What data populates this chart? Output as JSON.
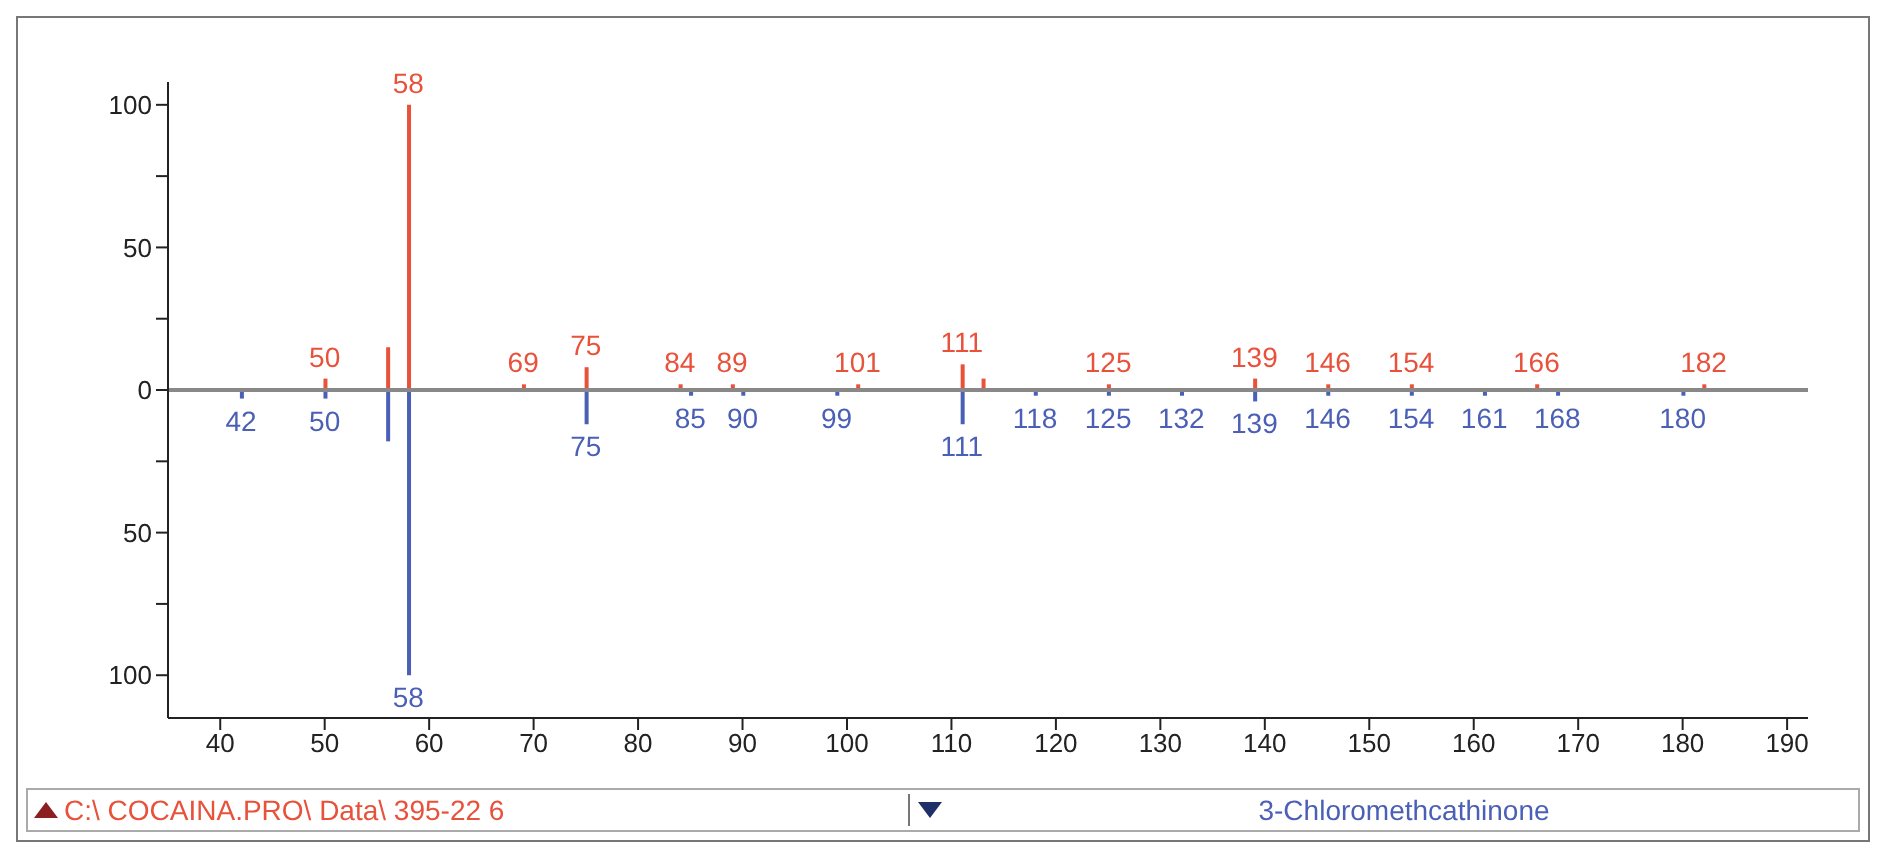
{
  "chart_data": {
    "type": "bar",
    "xlim": [
      35,
      192
    ],
    "xticks": [
      40,
      50,
      60,
      70,
      80,
      90,
      100,
      110,
      120,
      130,
      140,
      150,
      160,
      170,
      180,
      190
    ],
    "ylim": [
      -115,
      108
    ],
    "yticks": [
      100,
      {
        "value": 75,
        "label": null
      },
      50,
      {
        "value": 25,
        "label": null
      },
      0,
      {
        "value": -25,
        "label": null
      },
      {
        "value": -50,
        "label": "50"
      },
      {
        "value": -75,
        "label": null
      },
      {
        "value": -100,
        "label": "100"
      }
    ],
    "series": [
      {
        "color": "#e8513a",
        "x": [
          50,
          56,
          58,
          69,
          75,
          84,
          89,
          101,
          111,
          113,
          125,
          139,
          146,
          154,
          166,
          182
        ],
        "values": [
          4,
          15,
          100,
          2,
          8,
          2,
          2,
          2,
          9,
          4,
          2,
          4,
          2,
          2,
          2,
          2
        ]
      },
      {
        "color": "#4a5fb5",
        "x": [
          42,
          50,
          56,
          58,
          75,
          85,
          90,
          99,
          111,
          118,
          125,
          132,
          139,
          146,
          154,
          161,
          168,
          180
        ],
        "values": [
          -3,
          -3,
          -18,
          -100,
          -12,
          -2,
          -2,
          -2,
          -12,
          -2,
          -2,
          -2,
          -4,
          -2,
          -2,
          -2,
          -2,
          -2
        ]
      }
    ],
    "ref_lines": [
      {
        "axis": "y",
        "value": 0,
        "color": "#888888"
      }
    ],
    "annotations": [
      {
        "text": "50",
        "x": 50,
        "y": 4
      },
      {
        "text": "58",
        "x": 58,
        "y": 100
      },
      {
        "text": "69",
        "x": 69,
        "y": 2
      },
      {
        "text": "75",
        "x": 75,
        "y": 8
      },
      {
        "text": "84",
        "x": 84,
        "y": 2
      },
      {
        "text": "89",
        "x": 89,
        "y": 2
      },
      {
        "text": "101",
        "x": 101,
        "y": 2
      },
      {
        "text": "111",
        "x": 111,
        "y": 9
      },
      {
        "text": "125",
        "x": 125,
        "y": 2
      },
      {
        "text": "139",
        "x": 139,
        "y": 4
      },
      {
        "text": "146",
        "x": 146,
        "y": 2
      },
      {
        "text": "154",
        "x": 154,
        "y": 2
      },
      {
        "text": "166",
        "x": 166,
        "y": 2
      },
      {
        "text": "182",
        "x": 182,
        "y": 2
      },
      {
        "text": "42",
        "x": 42,
        "y": -3
      },
      {
        "text": "50",
        "x": 50,
        "y": -3
      },
      {
        "text": "58",
        "x": 58,
        "y": -100
      },
      {
        "text": "75",
        "x": 75,
        "y": -12
      },
      {
        "text": "85",
        "x": 85,
        "y": -2
      },
      {
        "text": "90",
        "x": 90,
        "y": -2
      },
      {
        "text": "99",
        "x": 99,
        "y": -2
      },
      {
        "text": "111",
        "x": 111,
        "y": -12
      },
      {
        "text": "118",
        "x": 118,
        "y": -2
      },
      {
        "text": "125",
        "x": 125,
        "y": -2
      },
      {
        "text": "132",
        "x": 132,
        "y": -2
      },
      {
        "text": "139",
        "x": 139,
        "y": -4
      },
      {
        "text": "146",
        "x": 146,
        "y": -2
      },
      {
        "text": "154",
        "x": 154,
        "y": -2
      },
      {
        "text": "161",
        "x": 161,
        "y": -2
      },
      {
        "text": "168",
        "x": 168,
        "y": -2
      },
      {
        "text": "180",
        "x": 180,
        "y": -2
      },
      "C:\\ COCAINA.PRO\\ Data\\ 395-22 6",
      "3-Chloromethcathinone"
    ]
  }
}
